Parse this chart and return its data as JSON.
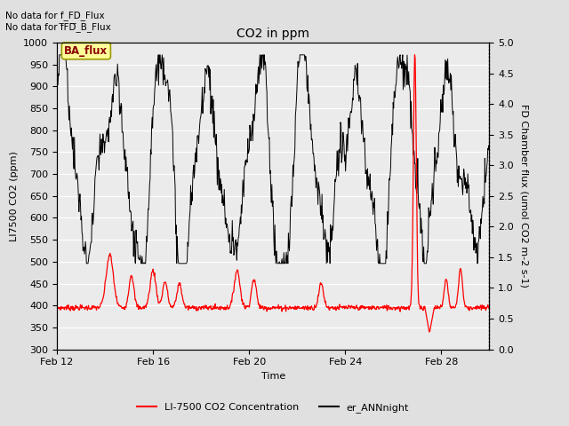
{
  "title": "CO2 in ppm",
  "xlabel": "Time",
  "ylabel_left": "LI7500 CO2 (ppm)",
  "ylabel_right": "FD Chamber flux (umol CO2 m-2 s-1)",
  "text_no_data_1": "No data for f_FD_Flux",
  "text_no_data_2": "No data for f̅FD̅_B_Flux",
  "ba_flux_label": "BA_flux",
  "ylim_left": [
    300,
    1000
  ],
  "ylim_right": [
    0.0,
    5.0
  ],
  "legend_entries": [
    "LI-7500 CO2 Concentration",
    "er_ANNnight"
  ],
  "background_color": "#e0e0e0",
  "plot_bg_color": "#ebebeb",
  "grid_color": "#ffffff",
  "date_ticks": [
    12,
    16,
    20,
    24,
    28
  ],
  "n_days": 18,
  "title_fontsize": 10,
  "label_fontsize": 8,
  "tick_fontsize": 8,
  "legend_fontsize": 8
}
